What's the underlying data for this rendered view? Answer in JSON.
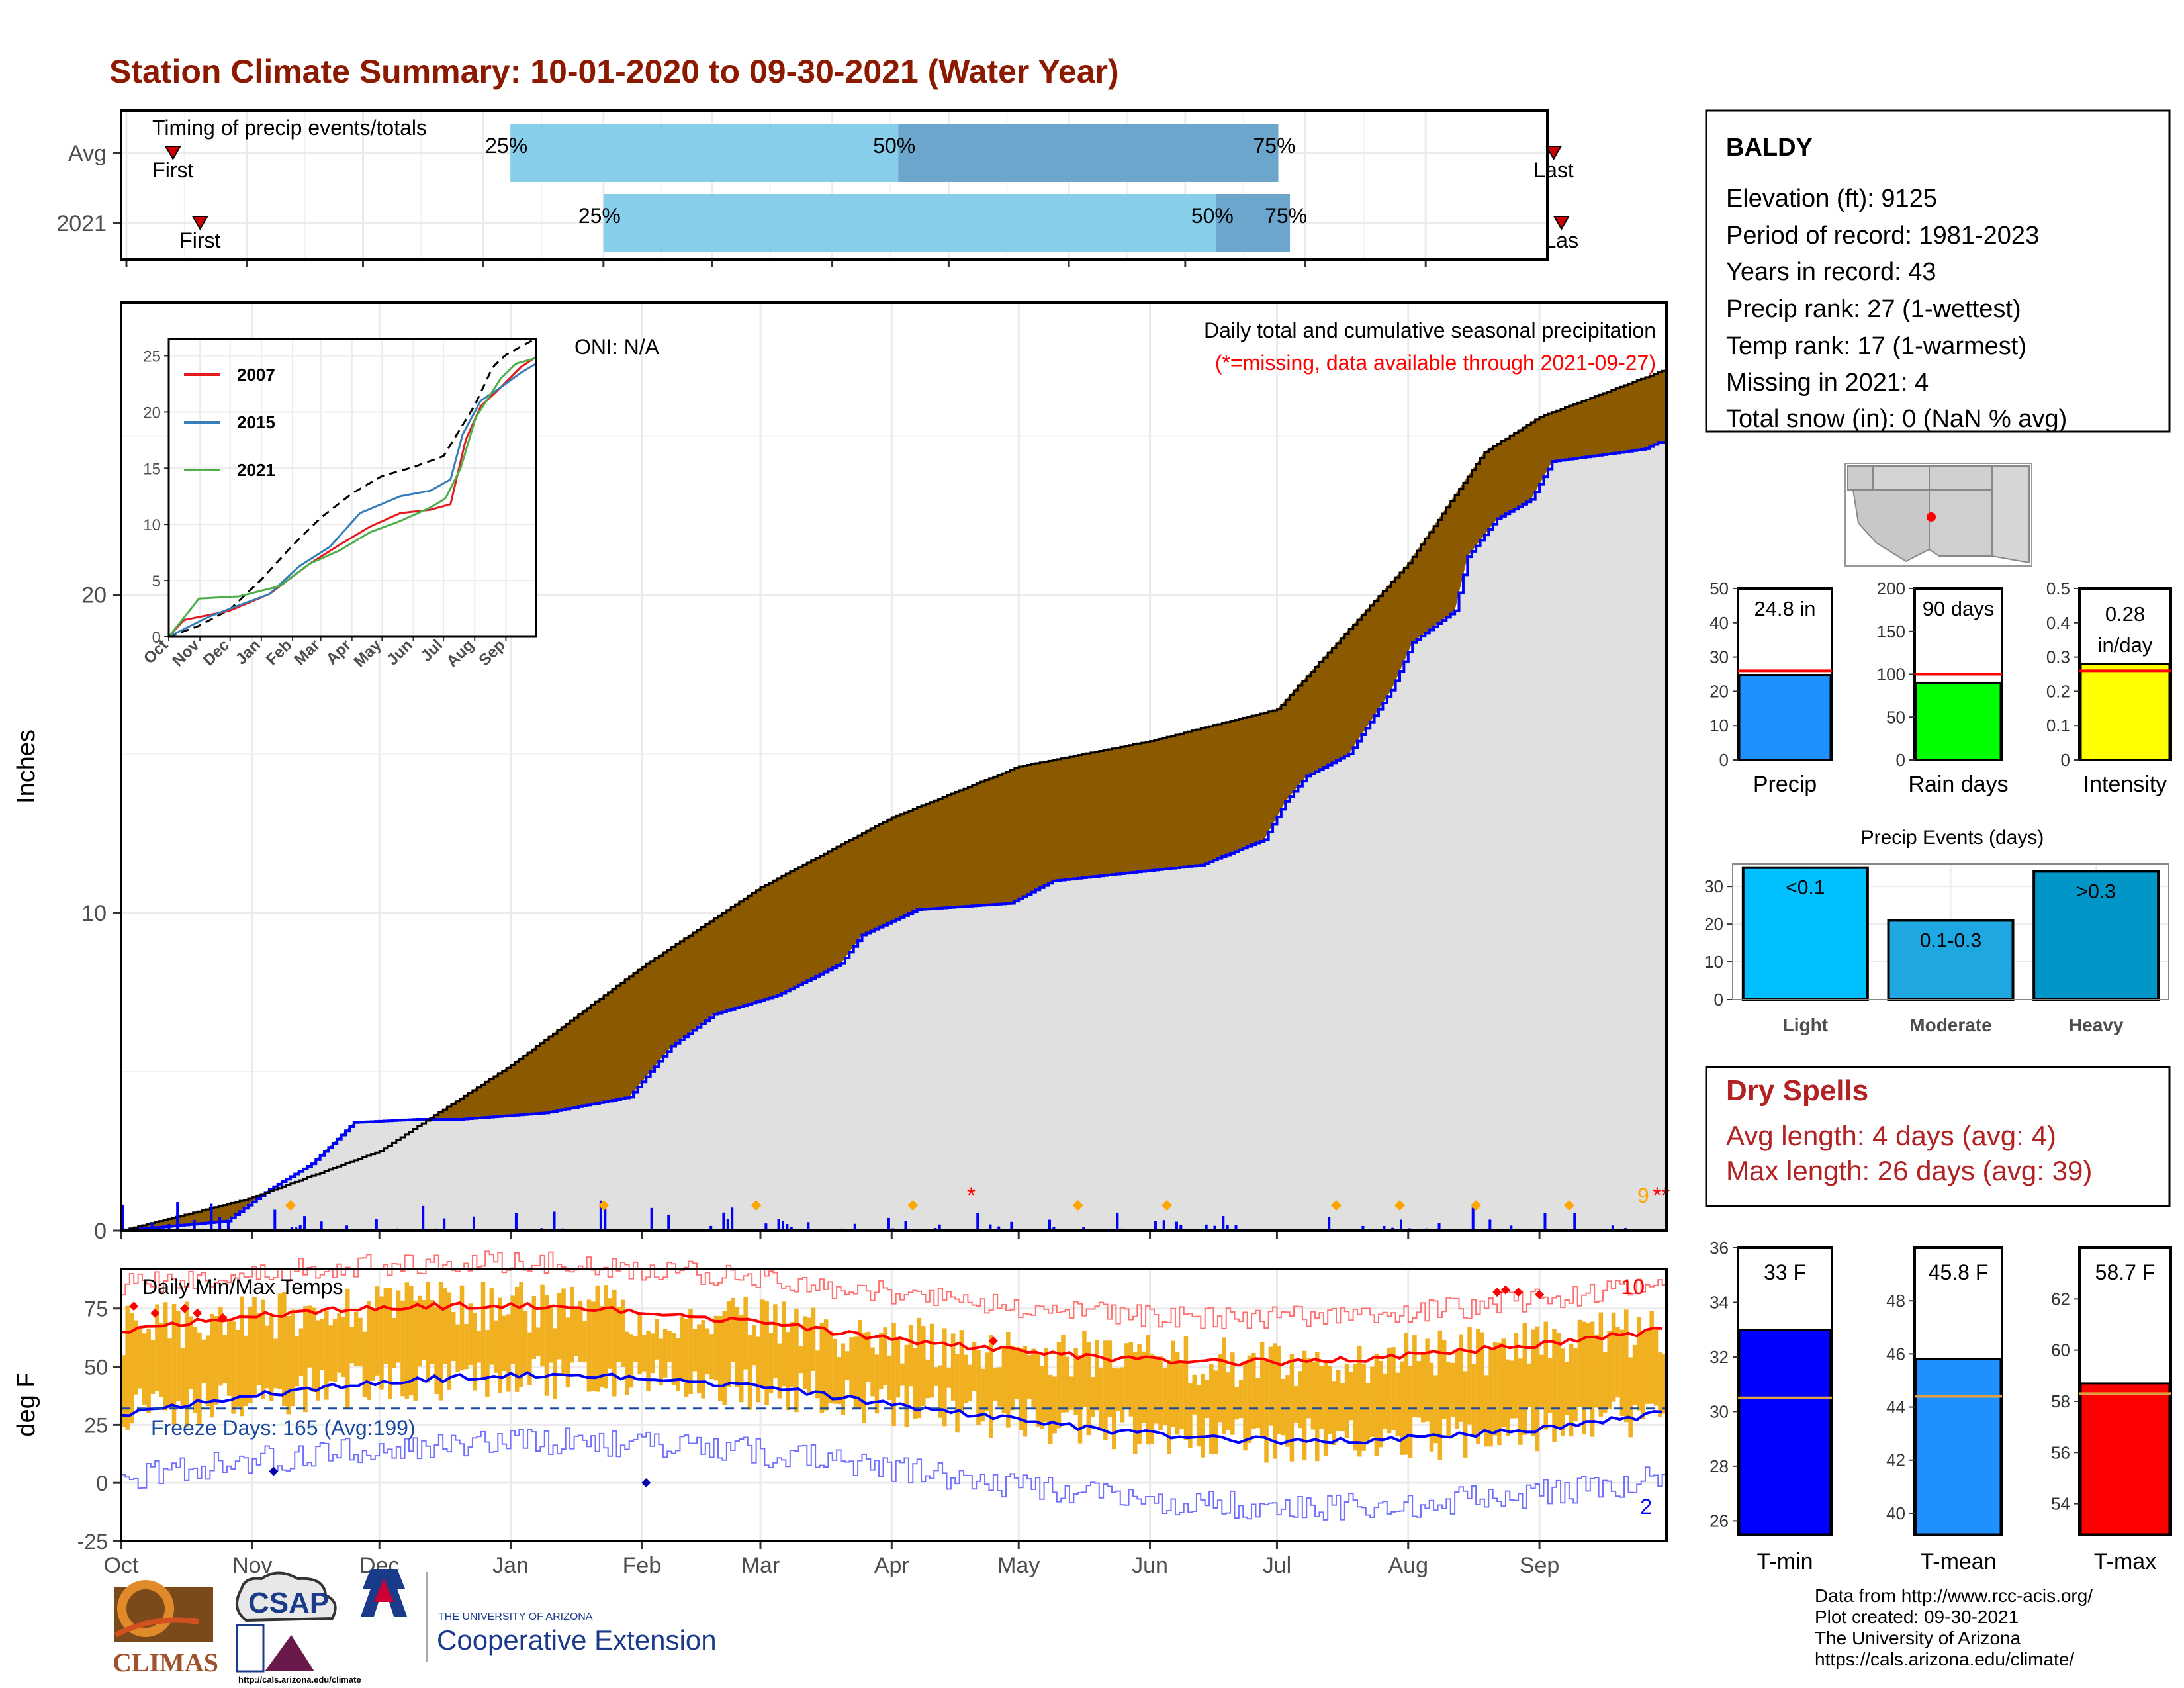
{
  "title": "Station Climate Summary: 10-01-2020 to 09-30-2021 (Water Year)",
  "months": [
    "Oct",
    "Nov",
    "Dec",
    "Jan",
    "Feb",
    "Mar",
    "Apr",
    "May",
    "Jun",
    "Jul",
    "Aug",
    "Sep"
  ],
  "timing": {
    "label": "Timing of precip events/totals",
    "rows": [
      {
        "name": "Avg",
        "first_day": 12,
        "p25": 99,
        "p50": 199,
        "p75": 297,
        "last_day": 368,
        "first_label": "First",
        "last_label": "Last",
        "p25_label": "25%",
        "p50_label": "50%",
        "p75_label": "75%"
      },
      {
        "name": "2021",
        "first_day": 19,
        "p25": 123,
        "p50": 281,
        "p75": 300,
        "last_day": 370,
        "first_label": "First",
        "last_label": "Las",
        "p25_label": "25%",
        "p50_label": "50%",
        "p75_label": "75%"
      }
    ]
  },
  "precip_panel": {
    "ylabel": "Inches",
    "oni": "ONI: N/A",
    "legend_title": "Daily total and cumulative seasonal precipitation",
    "missing_note": "(*=missing, data available through 2021-09-27)",
    "missing_count_label": "9",
    "yticks": [
      0,
      10,
      20
    ]
  },
  "inset": {
    "yticks": [
      0,
      5,
      10,
      15,
      20,
      25
    ],
    "xticks": [
      "Oct",
      "Nov",
      "Dec",
      "Jan",
      "Feb",
      "Mar",
      "Apr",
      "May",
      "Jun",
      "Jul",
      "Aug",
      "Sep"
    ],
    "series": [
      {
        "name": "2007",
        "color": "#e41a1c"
      },
      {
        "name": "2015",
        "color": "#377eb8"
      },
      {
        "name": "2021",
        "color": "#4daf4a"
      }
    ]
  },
  "temp_panel": {
    "ylabel": "deg F",
    "label": "Daily Min/Max Temps",
    "freeze_label": "Freeze Days: 165 (Avg:199)",
    "count_high": "10",
    "count_low": "2",
    "yticks": [
      -25,
      0,
      25,
      50,
      75
    ]
  },
  "station": {
    "name": "BALDY",
    "lines": [
      "Elevation (ft): 9125",
      "Period of record: 1981-2023",
      "Years in record: 43",
      "Precip rank: 27 (1-wettest)",
      "Temp rank: 17 (1-warmest)",
      "Missing in 2021: 4",
      "Total snow (in): 0 (NaN % avg)"
    ]
  },
  "mini_bars": [
    {
      "label": "Precip",
      "value": 24.8,
      "value_label": "24.8 in",
      "avg": 26,
      "ymax": 50,
      "yticks": [
        0,
        10,
        20,
        30,
        40,
        50
      ],
      "color": "#1e90ff"
    },
    {
      "label": "Rain days",
      "value": 90,
      "value_label": "90 days",
      "avg": 100,
      "ymax": 200,
      "yticks": [
        0,
        50,
        100,
        150,
        200
      ],
      "color": "#00ff00"
    },
    {
      "label": "Intensity",
      "value": 0.28,
      "value_label": "0.28",
      "value_label2": "in/day",
      "avg": 0.26,
      "ymax": 0.5,
      "yticks": [
        0.0,
        0.1,
        0.2,
        0.3,
        0.4,
        0.5
      ],
      "color": "#ffff00"
    }
  ],
  "precip_events": {
    "title": "Precip Events (days)",
    "yticks": [
      0,
      10,
      20,
      30
    ],
    "bars": [
      {
        "category": "Light",
        "bar_label": "<0.1",
        "value": 35,
        "color": "#00bfff"
      },
      {
        "category": "Moderate",
        "bar_label": "0.1-0.3",
        "value": 21,
        "color": "#1ea7e0"
      },
      {
        "category": "Heavy",
        "bar_label": ">0.3",
        "value": 34,
        "color": "#0096c7"
      }
    ]
  },
  "dry_spells": {
    "title": "Dry Spells",
    "avg_length": "Avg length: 4 days (avg: 4)",
    "max_length": "Max length: 26 days (avg: 39)"
  },
  "temp_bars": [
    {
      "label": "T-min",
      "value": 33,
      "value_label": "33 F",
      "avg": 30.5,
      "ymin": 25.5,
      "ymax": 36,
      "yticks": [
        26,
        28,
        30,
        32,
        34,
        36
      ],
      "color": "#0000ff"
    },
    {
      "label": "T-mean",
      "value": 45.8,
      "value_label": "45.8 F",
      "avg": 44.4,
      "ymin": 39.2,
      "ymax": 50.0,
      "yticks": [
        40,
        42,
        44,
        46,
        48
      ],
      "color": "#1e90ff"
    },
    {
      "label": "T-max",
      "value": 58.7,
      "value_label": "58.7 F",
      "avg": 58.3,
      "ymin": 52.8,
      "ymax": 64.0,
      "yticks": [
        54,
        56,
        58,
        60,
        62
      ],
      "color": "#ff0000"
    }
  ],
  "footer": {
    "lines": [
      "Data from http://www.rcc-acis.org/",
      "Plot created: 09-30-2021",
      "The University of Arizona",
      "https://cals.arizona.edu/climate/"
    ],
    "logo_climas": "CLIMAS",
    "logo_csap": "CSAP",
    "logo_csap_url": "http://cals.arizona.edu/climate",
    "ua_small": "THE UNIVERSITY OF ARIZONA",
    "ua_big": "Cooperative Extension"
  },
  "colors": {
    "title": "#8b1a00",
    "cum_fill": "#8b5a00",
    "surplus_fill": "#1a8a1a",
    "obs_fill": "#e0e0e0",
    "obs_line": "#0000ff",
    "dry_title": "#b22222",
    "tbar_fill": "#f0b020"
  }
}
